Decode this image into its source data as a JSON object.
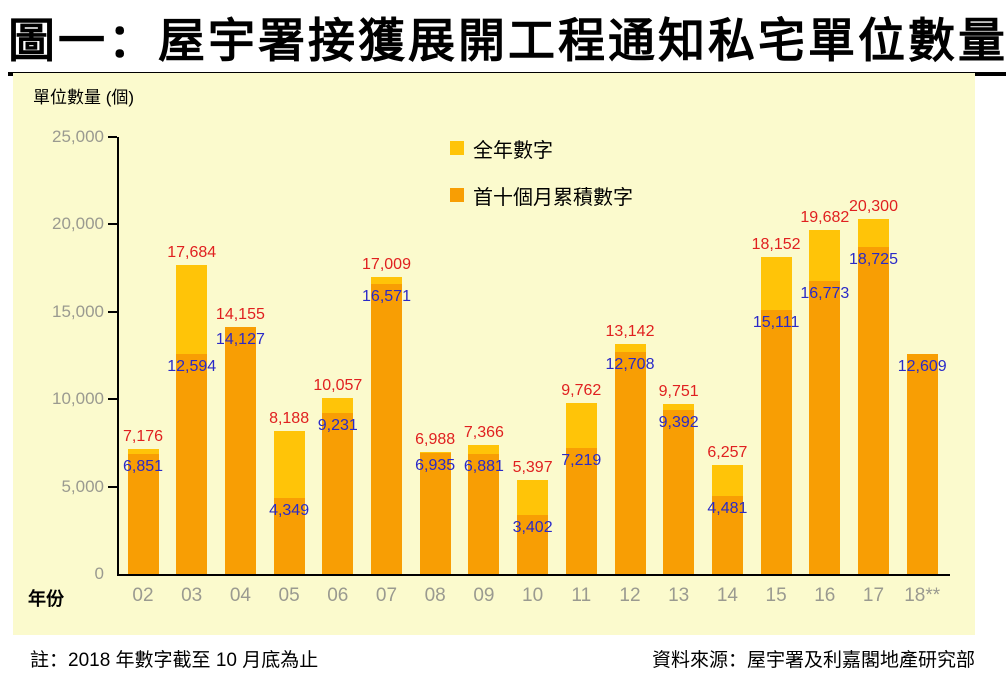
{
  "title": "圖一：屋宇署接獲展開工程通知私宅單位數量",
  "footnote": "註：2018 年數字截至 10 月底為止",
  "source": "資料來源：屋宇署及利嘉閣地產研究部",
  "colors": {
    "panel_background": "#FBFACD",
    "axis": "#000000",
    "tick_label": "#9A9A90",
    "full_year_bar": "#FFC408",
    "first_ten_months_bar": "#F89E04",
    "full_year_label": "#E02020",
    "first_ten_months_label": "#2A2AC8"
  },
  "chart_data": {
    "type": "bar",
    "stacked": true,
    "title": "圖一：屋宇署接獲展開工程通知私宅單位數量",
    "ylabel": "單位數量 (個)",
    "xlabel": "年份",
    "ylim": [
      0,
      25000
    ],
    "yticks": [
      0,
      5000,
      10000,
      15000,
      20000,
      25000
    ],
    "grid": false,
    "legend_position": "top-center",
    "categories": [
      "02",
      "03",
      "04",
      "05",
      "06",
      "07",
      "08",
      "09",
      "10",
      "11",
      "12",
      "13",
      "14",
      "15",
      "16",
      "17",
      "18**"
    ],
    "series": [
      {
        "name": "全年數字",
        "color": "#FFC408",
        "label_color": "#E02020",
        "values": [
          7176,
          17684,
          14155,
          8188,
          10057,
          17009,
          6988,
          7366,
          5397,
          9762,
          13142,
          9751,
          6257,
          18152,
          19682,
          20300,
          null
        ]
      },
      {
        "name": "首十個月累積數字",
        "color": "#F89E04",
        "label_color": "#2A2AC8",
        "values": [
          6851,
          12594,
          14127,
          4349,
          9231,
          16571,
          6935,
          6881,
          3402,
          7219,
          12708,
          9392,
          4481,
          15111,
          16773,
          18725,
          12609
        ]
      }
    ]
  }
}
